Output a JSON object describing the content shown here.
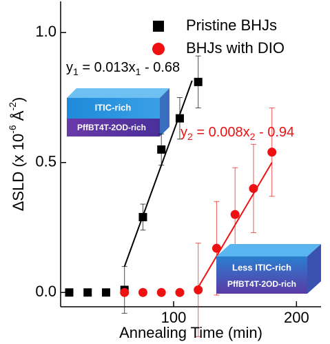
{
  "chart_data": {
    "type": "scatter",
    "xlabel": "Annealing Time (min)",
    "ylabel_parts": [
      "ΔSLD  (x 10",
      "-6",
      " Å",
      "-2",
      ")"
    ],
    "xlim": [
      8,
      220
    ],
    "ylim": [
      -0.055,
      1.12
    ],
    "xticks": [
      100,
      200
    ],
    "yticks": [
      {
        "value": 0,
        "label": "0.0"
      },
      0.5,
      {
        "value": 1,
        "label": "1.0"
      }
    ],
    "legend": "upper right",
    "series": [
      {
        "name": "Pristine BHJs",
        "color": "#000000",
        "marker": "square",
        "x": [
          15,
          30,
          45,
          60,
          75,
          90,
          105,
          120
        ],
        "values": [
          0,
          0,
          0,
          0.01,
          0.29,
          0.55,
          0.67,
          0.81
        ],
        "errors": [
          0,
          0,
          0,
          0.09,
          0.05,
          0.06,
          0.08,
          0.1
        ]
      },
      {
        "name": "BHJs with DIO",
        "color": "#ee1111",
        "marker": "circle",
        "x": [
          60,
          75,
          90,
          105,
          120,
          135,
          150,
          165,
          180
        ],
        "values": [
          0,
          0,
          0,
          0,
          0.01,
          0.17,
          0.3,
          0.4,
          0.54
        ],
        "errors": [
          0,
          0,
          0,
          0,
          0.18,
          0.18,
          0.18,
          0.17,
          0.17
        ]
      }
    ],
    "fits": [
      {
        "color": "#000000",
        "x": [
          60,
          115
        ],
        "values": [
          0.1,
          0.815
        ],
        "label_parts": [
          "y",
          "1",
          " = 0.013x",
          "1",
          " - 0.68"
        ]
      },
      {
        "color": "#ee1111",
        "x": [
          120,
          180
        ],
        "values": [
          0.02,
          0.5
        ],
        "label_parts": [
          "y",
          "2",
          " = 0.008x",
          "2",
          " - 0.94"
        ]
      }
    ],
    "boxes": [
      {
        "top": "ITIC-rich",
        "bottom": "PffBT4T-2OD-rich"
      },
      {
        "top": "Less ITIC-rich",
        "bottom": "PffBT4T-2OD-rich"
      }
    ]
  }
}
